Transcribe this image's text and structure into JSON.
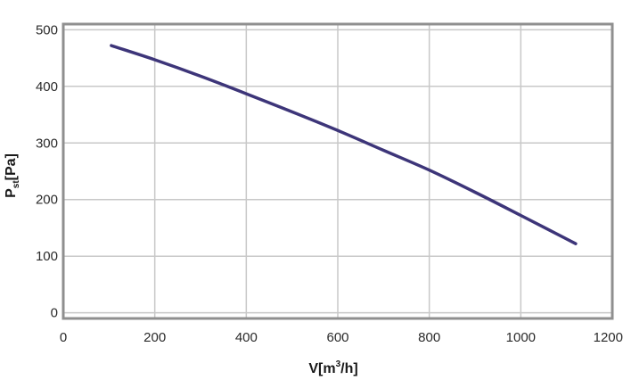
{
  "chart_data": {
    "type": "line",
    "xlabel": "V[m³/h]",
    "xlabel_parts": {
      "main": "V[m",
      "sup": "3",
      "tail": "/h]"
    },
    "ylabel": "Pst[Pa]",
    "ylabel_parts": {
      "main": "P",
      "sub": "st",
      "tail": "[Pa]"
    },
    "xlim": [
      0,
      1200
    ],
    "ylim": [
      -10,
      510
    ],
    "xticks": [
      0,
      200,
      400,
      600,
      800,
      1000,
      1200
    ],
    "yticks": [
      0,
      100,
      200,
      300,
      400,
      500
    ],
    "grid": true,
    "colors": {
      "line": "#3d3579",
      "grid": "#c8c8c8",
      "frame": "#8f8f8f"
    },
    "series": [
      {
        "x": [
          105,
          200,
          300,
          400,
          500,
          600,
          700,
          800,
          900,
          1000,
          1120
        ],
        "y": [
          472,
          447,
          418,
          387,
          355,
          322,
          287,
          252,
          213,
          172,
          122
        ]
      }
    ]
  }
}
